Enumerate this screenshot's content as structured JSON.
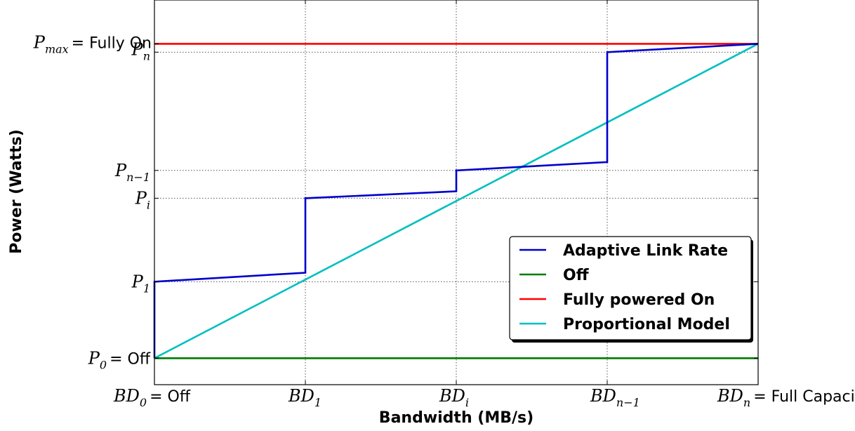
{
  "chart_data": {
    "type": "line",
    "xlabel": "Bandwidth (MB/s)",
    "ylabel": "Power (Watts)",
    "grid": true,
    "legend_position": "lower-right",
    "x_ticks": [
      {
        "label": "BD_0 = Off",
        "base": "BD",
        "sub": "0",
        "suffix": "= Off",
        "value": 0
      },
      {
        "label": "BD_1",
        "base": "BD",
        "sub": "1",
        "suffix": "",
        "value": 1
      },
      {
        "label": "BD_i",
        "base": "BD",
        "sub": "i",
        "suffix": "",
        "value": 2
      },
      {
        "label": "BD_{n-1}",
        "base": "BD",
        "sub": "n−1",
        "suffix": "",
        "value": 3
      },
      {
        "label": "BD_n = Full Capacity",
        "base": "BD",
        "sub": "n",
        "suffix": "= Full Capacity",
        "value": 4
      }
    ],
    "y_ticks": [
      {
        "label": "P_0 = Off",
        "base": "P",
        "sub": "0",
        "suffix": "= Off",
        "value": 0
      },
      {
        "label": "P_1",
        "base": "P",
        "sub": "1",
        "suffix": "",
        "value": 1.1
      },
      {
        "label": "P_i",
        "base": "P",
        "sub": "i",
        "suffix": "",
        "value": 2.3
      },
      {
        "label": "P_{n-1}",
        "base": "P",
        "sub": "n−1",
        "suffix": "",
        "value": 2.7
      },
      {
        "label": "P_n",
        "base": "P",
        "sub": "n",
        "suffix": "",
        "value": 4.4
      },
      {
        "label": "P_max = Fully On",
        "base": "P",
        "sub": "max",
        "suffix": "= Fully On",
        "value": 4.52
      }
    ],
    "xlim": [
      0,
      4
    ],
    "ylim": [
      -0.38,
      5.15
    ],
    "series": [
      {
        "name": "Adaptive Link Rate",
        "color": "#0000cc",
        "points": [
          [
            0,
            0
          ],
          [
            0,
            1.1
          ],
          [
            1,
            1.23
          ],
          [
            1,
            2.3
          ],
          [
            2,
            2.4
          ],
          [
            2,
            2.7
          ],
          [
            3,
            2.82
          ],
          [
            3,
            4.4
          ],
          [
            4,
            4.52
          ]
        ]
      },
      {
        "name": "Off",
        "color": "#007a00",
        "points": [
          [
            0,
            0
          ],
          [
            4,
            0
          ]
        ]
      },
      {
        "name": "Fully powered On",
        "color": "#ff0000",
        "points": [
          [
            0,
            4.52
          ],
          [
            4,
            4.52
          ]
        ]
      },
      {
        "name": "Proportional Model",
        "color": "#00bfbf",
        "points": [
          [
            0,
            0
          ],
          [
            4,
            4.52
          ]
        ]
      }
    ]
  }
}
